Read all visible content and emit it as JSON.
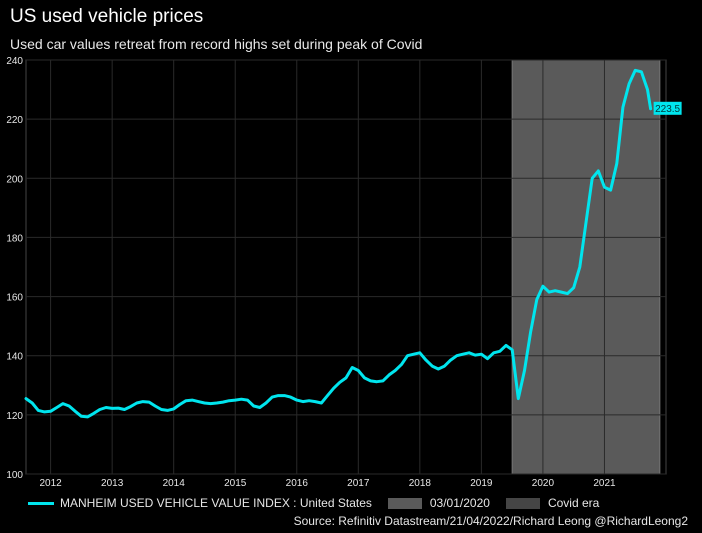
{
  "title": "US used vehicle prices",
  "subtitle": "Used car values retreat from record highs set during peak of Covid",
  "source": "Source: Refinitiv Datastream/21/04/2022/Richard Leong @RichardLeong2",
  "colors": {
    "line": "#00e5ee",
    "shade": "#5a5a5a",
    "shade2": "#454545",
    "background": "#000000",
    "gridline": "#2a2a2a"
  },
  "chart_data": {
    "type": "line",
    "title": "US used vehicle prices",
    "xlabel": "",
    "ylabel": "",
    "xlim": [
      2011.6,
      2022.0
    ],
    "ylim": [
      100,
      240
    ],
    "yticks": [
      100,
      120,
      140,
      160,
      180,
      200,
      220,
      240
    ],
    "xtick_labels": [
      {
        "label": "2012",
        "x": 2012.0
      },
      {
        "label": "2013",
        "x": 2013.0
      },
      {
        "label": "2014",
        "x": 2014.0
      },
      {
        "label": "2015",
        "x": 2015.0
      },
      {
        "label": "2016",
        "x": 2016.0
      },
      {
        "label": "2017",
        "x": 2017.0
      },
      {
        "label": "2018",
        "x": 2018.0
      },
      {
        "label": "2019",
        "x": 2019.0
      },
      {
        "label": "2020",
        "x": 2020.0
      },
      {
        "label": "2021",
        "x": 2021.0
      }
    ],
    "shaded_region": {
      "label": "Covid era",
      "start": 2019.5,
      "end": 2021.9
    },
    "last_value_label": "223.5",
    "series": [
      {
        "name": "MANHEIM USED VEHICLE VALUE INDEX : United States",
        "x": [
          2011.6,
          2011.7,
          2011.8,
          2011.9,
          2012.0,
          2012.1,
          2012.2,
          2012.3,
          2012.4,
          2012.5,
          2012.6,
          2012.7,
          2012.8,
          2012.9,
          2013.0,
          2013.1,
          2013.2,
          2013.3,
          2013.4,
          2013.5,
          2013.6,
          2013.7,
          2013.8,
          2013.9,
          2014.0,
          2014.1,
          2014.2,
          2014.3,
          2014.4,
          2014.5,
          2014.6,
          2014.7,
          2014.8,
          2014.9,
          2015.0,
          2015.1,
          2015.2,
          2015.3,
          2015.4,
          2015.5,
          2015.6,
          2015.7,
          2015.8,
          2015.9,
          2016.0,
          2016.1,
          2016.2,
          2016.3,
          2016.4,
          2016.5,
          2016.6,
          2016.7,
          2016.8,
          2016.9,
          2017.0,
          2017.1,
          2017.2,
          2017.3,
          2017.4,
          2017.5,
          2017.6,
          2017.7,
          2017.8,
          2017.9,
          2018.0,
          2018.1,
          2018.2,
          2018.3,
          2018.4,
          2018.5,
          2018.6,
          2018.7,
          2018.8,
          2018.9,
          2019.0,
          2019.1,
          2019.2,
          2019.3,
          2019.4,
          2019.5,
          2019.6,
          2019.7,
          2019.8,
          2019.9,
          2020.0,
          2020.1,
          2020.2,
          2020.3,
          2020.4,
          2020.5,
          2020.6,
          2020.7,
          2020.8,
          2020.9,
          2021.0,
          2021.1,
          2021.2,
          2021.3,
          2021.4,
          2021.5,
          2021.6,
          2021.7,
          2021.75
        ],
        "values": [
          125.5,
          124.0,
          121.5,
          121.0,
          121.2,
          122.5,
          123.8,
          123.0,
          121.2,
          119.5,
          119.3,
          120.5,
          121.8,
          122.5,
          122.2,
          122.3,
          121.8,
          122.8,
          124.0,
          124.5,
          124.3,
          123.0,
          121.8,
          121.5,
          122.0,
          123.5,
          124.8,
          125.0,
          124.5,
          124.0,
          123.8,
          124.0,
          124.3,
          124.8,
          125.0,
          125.3,
          125.0,
          123.0,
          122.5,
          124.0,
          126.0,
          126.5,
          126.5,
          126.0,
          125.0,
          124.5,
          124.8,
          124.5,
          124.0,
          126.5,
          129.0,
          131.0,
          132.5,
          136.0,
          135.0,
          132.5,
          131.5,
          131.2,
          131.5,
          133.5,
          135.0,
          137.0,
          140.0,
          140.5,
          141.0,
          138.5,
          136.5,
          135.5,
          136.5,
          138.5,
          140.0,
          140.5,
          141.0,
          140.2,
          140.5,
          139.0,
          141.0,
          141.5,
          143.5,
          142.0,
          125.5,
          135.0,
          148.0,
          159.0,
          163.5,
          161.5,
          162.0,
          161.5,
          161.0,
          163.0,
          170.0,
          185.0,
          200.0,
          202.5,
          197.0,
          196.0,
          205.0,
          224.0,
          232.0,
          236.5,
          236.0,
          230.0,
          223.5
        ]
      }
    ]
  },
  "legend": {
    "series_label": "MANHEIM USED VEHICLE VALUE INDEX : United States",
    "marker_label": "03/01/2020",
    "region_label": "Covid era"
  }
}
